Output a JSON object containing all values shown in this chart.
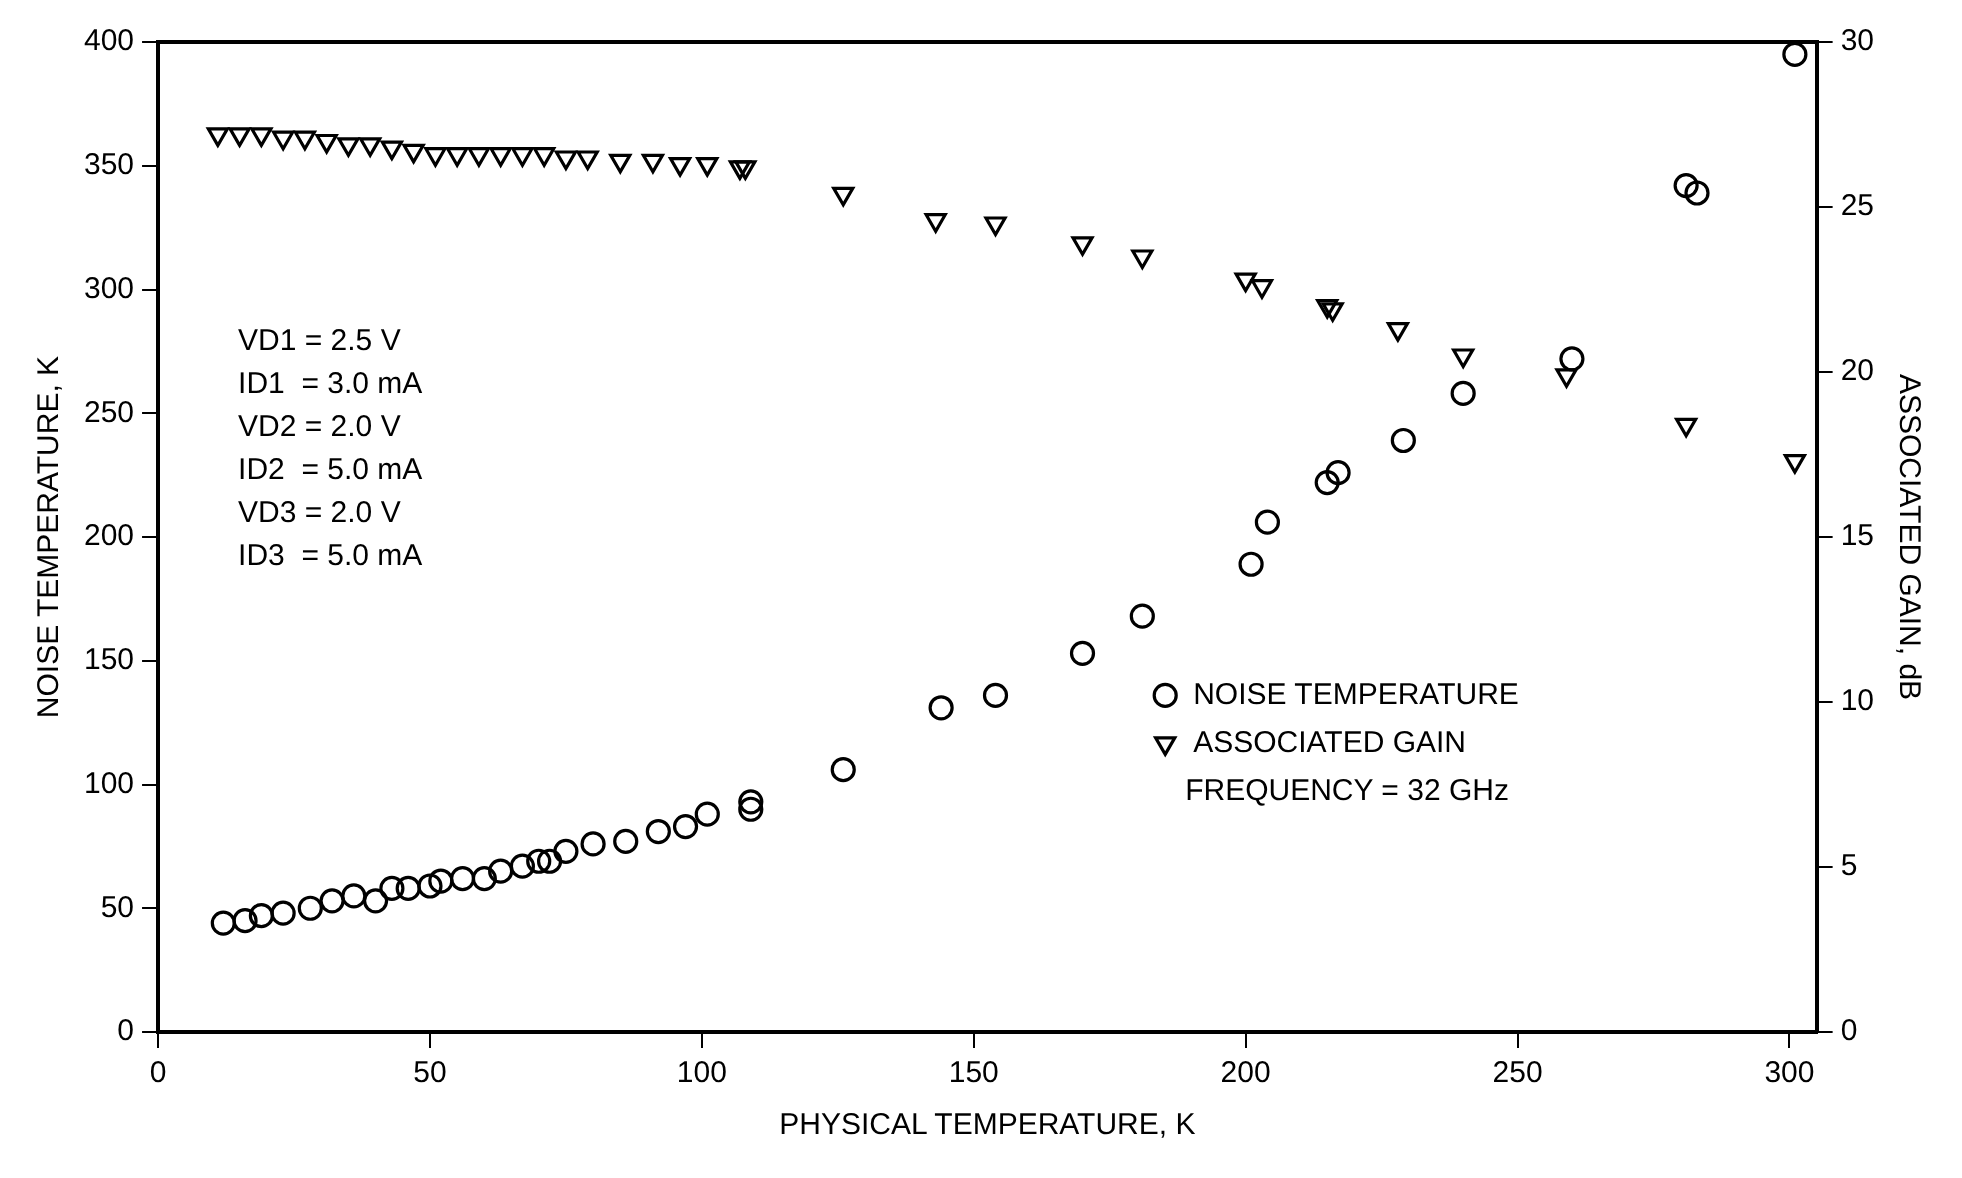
{
  "chart_data": {
    "type": "scatter",
    "xlabel": "PHYSICAL TEMPERATURE, K",
    "ylabel": "NOISE TEMPERATURE, K",
    "y2label": "ASSOCIATED GAIN, dB",
    "xlim": [
      0,
      305
    ],
    "xticks": [
      0,
      50,
      100,
      150,
      200,
      250,
      300
    ],
    "ylim": [
      0,
      400
    ],
    "yticks": [
      0,
      50,
      100,
      150,
      200,
      250,
      300,
      350,
      400
    ],
    "y2lim": [
      0,
      30
    ],
    "y2ticks": [
      0,
      5,
      10,
      15,
      20,
      25,
      30
    ],
    "grid": false,
    "legend": "bottom right",
    "series": [
      {
        "name": "NOISE TEMPERATURE",
        "color": "#000000",
        "marker": "circle",
        "x": [
          12,
          16,
          19,
          23,
          28,
          32,
          36,
          40,
          43,
          46,
          50,
          52,
          56,
          60,
          63,
          67,
          70,
          72,
          75,
          80,
          86,
          92,
          97,
          101,
          109,
          109,
          126,
          144,
          154,
          170,
          181,
          201,
          204,
          215,
          217,
          229,
          240,
          260,
          281,
          283,
          301
        ],
        "values": [
          44,
          45,
          47,
          48,
          50,
          53,
          55,
          53,
          58,
          58,
          59,
          61,
          62,
          62,
          65,
          67,
          69,
          69,
          73,
          76,
          77,
          81,
          83,
          88,
          93,
          90,
          106,
          131,
          136,
          153,
          168,
          189,
          206,
          222,
          226,
          239,
          258,
          272,
          342,
          339,
          395
        ]
      },
      {
        "name": "ASSOCIATED GAIN",
        "color": "#000000",
        "marker": "triangle",
        "axis": "y2",
        "x": [
          11,
          15,
          19,
          23,
          27,
          31,
          35,
          39,
          43,
          47,
          51,
          55,
          59,
          63,
          67,
          71,
          75,
          79,
          85,
          91,
          96,
          101,
          107,
          108,
          126,
          143,
          154,
          170,
          181,
          200,
          203,
          215,
          216,
          228,
          240,
          259,
          281,
          301
        ],
        "values": [
          27.2,
          27.2,
          27.2,
          27.1,
          27.1,
          27.0,
          26.9,
          26.9,
          26.8,
          26.7,
          26.6,
          26.6,
          26.6,
          26.6,
          26.6,
          26.6,
          26.5,
          26.5,
          26.4,
          26.4,
          26.3,
          26.3,
          26.2,
          26.2,
          25.4,
          24.6,
          24.5,
          23.9,
          23.5,
          22.8,
          22.6,
          22.0,
          21.9,
          21.3,
          20.5,
          19.9,
          18.4,
          17.3
        ]
      }
    ],
    "annotations": [
      "VD1 = 2.5 V",
      "ID1  = 3.0 mA",
      "VD2 = 2.0 V",
      "ID2  = 5.0 mA",
      "VD3 = 2.0 V",
      "ID3  = 5.0 mA",
      "FREQUENCY = 32 GHz"
    ]
  }
}
